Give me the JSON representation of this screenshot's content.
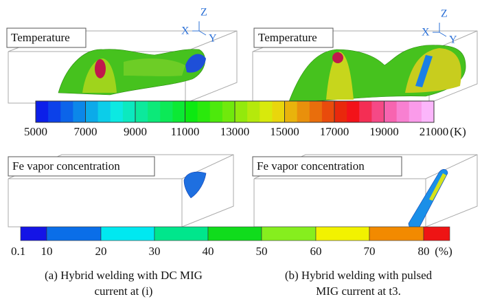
{
  "temperature_panels": [
    {
      "label": "Temperature",
      "axes": {
        "z": "Z",
        "x": "X",
        "y": "Y"
      }
    },
    {
      "label": "Temperature",
      "axes": {
        "z": "Z",
        "x": "X",
        "y": "Y"
      }
    }
  ],
  "temperature_scale": {
    "ticks": [
      "5000",
      "7000",
      "9000",
      "11000",
      "13000",
      "15000",
      "17000",
      "19000",
      "21000"
    ],
    "unit": "(K)"
  },
  "vapor_panels": [
    {
      "label": "Fe vapor concentration"
    },
    {
      "label": "Fe vapor concentration"
    }
  ],
  "vapor_scale": {
    "ticks": [
      "0.1",
      "10",
      "20",
      "30",
      "40",
      "50",
      "60",
      "70",
      "80"
    ],
    "unit": "(%)"
  },
  "captions": [
    {
      "lines": [
        "(a) Hybrid welding with DC MIG",
        "current at (i)"
      ]
    },
    {
      "lines": [
        "(b) Hybrid welding with pulsed",
        "MIG current at t3."
      ]
    }
  ]
}
